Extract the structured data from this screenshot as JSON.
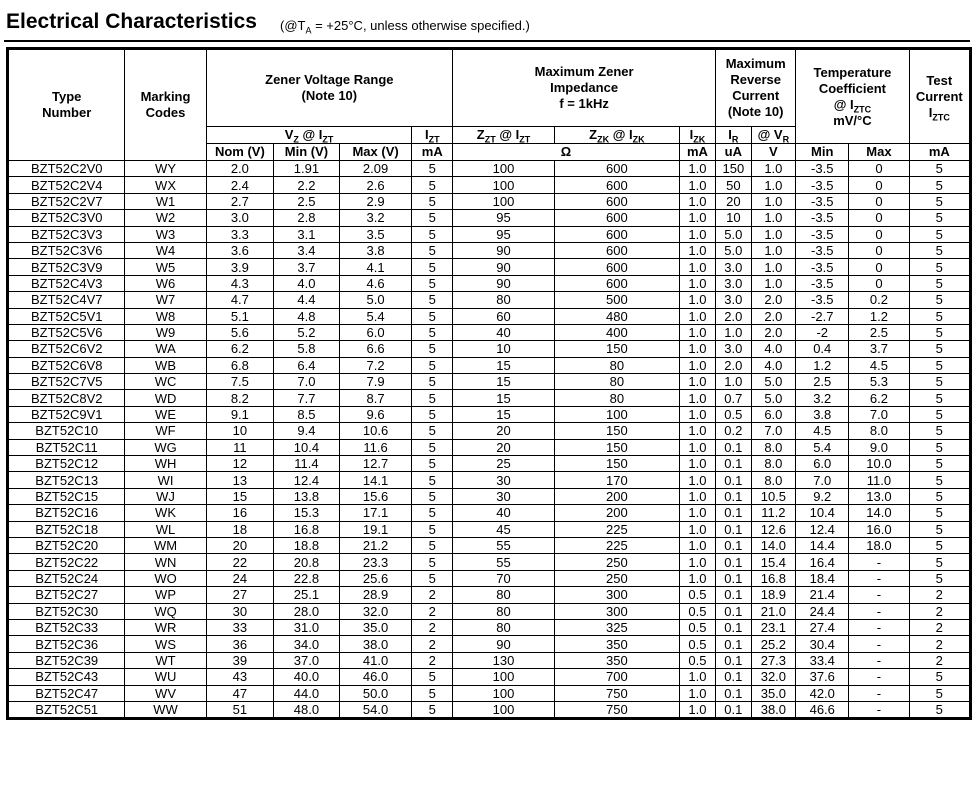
{
  "title": "Electrical Characteristics",
  "title_note": {
    "pre": "(@T",
    "sub": "A",
    "post": " = +25°C, unless otherwise specified.)"
  },
  "headers": {
    "type_number": [
      "Type",
      "Number"
    ],
    "marking_codes": [
      "Marking",
      "Codes"
    ],
    "zener_voltage_range": [
      "Zener Voltage Range",
      "(Note 10)"
    ],
    "max_zener_impedance": [
      "Maximum Zener",
      "Impedance",
      "f = 1kHz"
    ],
    "max_reverse_current": [
      "Maximum",
      "Reverse",
      "Current",
      "(Note 10)"
    ],
    "temp_coefficient": [
      "Temperature",
      "Coefficient",
      "@ I",
      "ZTC",
      "mV/°C"
    ],
    "test_current": [
      "Test",
      "Current",
      "I",
      "ZTC"
    ],
    "vz_at_izt": {
      "a": "V",
      "a_sub": "Z",
      "b": " @ I",
      "b_sub": "ZT"
    },
    "izt": {
      "a": "I",
      "a_sub": "ZT"
    },
    "zzt_at_izt": {
      "a": "Z",
      "a_sub": "ZT",
      "b": " @ I",
      "b_sub": "ZT"
    },
    "zzk_at_izk": {
      "a": "Z",
      "a_sub": "ZK",
      "b": " @ I",
      "b_sub": "ZK"
    },
    "izk": {
      "a": "I",
      "a_sub": "ZK"
    },
    "ir": {
      "a": "I",
      "a_sub": "R"
    },
    "at_vr": {
      "a": "@ V",
      "a_sub": "R"
    },
    "units": [
      "Nom (V)",
      "Min (V)",
      "Max (V)",
      "mA",
      "Ω",
      "mA",
      "uA",
      "V",
      "Min",
      "Max",
      "mA"
    ]
  },
  "rows": [
    [
      "BZT52C2V0",
      "WY",
      "2.0",
      "1.91",
      "2.09",
      "5",
      "100",
      "600",
      "1.0",
      "150",
      "1.0",
      "-3.5",
      "0",
      "5"
    ],
    [
      "BZT52C2V4",
      "WX",
      "2.4",
      "2.2",
      "2.6",
      "5",
      "100",
      "600",
      "1.0",
      "50",
      "1.0",
      "-3.5",
      "0",
      "5"
    ],
    [
      "BZT52C2V7",
      "W1",
      "2.7",
      "2.5",
      "2.9",
      "5",
      "100",
      "600",
      "1.0",
      "20",
      "1.0",
      "-3.5",
      "0",
      "5"
    ],
    [
      "BZT52C3V0",
      "W2",
      "3.0",
      "2.8",
      "3.2",
      "5",
      "95",
      "600",
      "1.0",
      "10",
      "1.0",
      "-3.5",
      "0",
      "5"
    ],
    [
      "BZT52C3V3",
      "W3",
      "3.3",
      "3.1",
      "3.5",
      "5",
      "95",
      "600",
      "1.0",
      "5.0",
      "1.0",
      "-3.5",
      "0",
      "5"
    ],
    [
      "BZT52C3V6",
      "W4",
      "3.6",
      "3.4",
      "3.8",
      "5",
      "90",
      "600",
      "1.0",
      "5.0",
      "1.0",
      "-3.5",
      "0",
      "5"
    ],
    [
      "BZT52C3V9",
      "W5",
      "3.9",
      "3.7",
      "4.1",
      "5",
      "90",
      "600",
      "1.0",
      "3.0",
      "1.0",
      "-3.5",
      "0",
      "5"
    ],
    [
      "BZT52C4V3",
      "W6",
      "4.3",
      "4.0",
      "4.6",
      "5",
      "90",
      "600",
      "1.0",
      "3.0",
      "1.0",
      "-3.5",
      "0",
      "5"
    ],
    [
      "BZT52C4V7",
      "W7",
      "4.7",
      "4.4",
      "5.0",
      "5",
      "80",
      "500",
      "1.0",
      "3.0",
      "2.0",
      "-3.5",
      "0.2",
      "5"
    ],
    [
      "BZT52C5V1",
      "W8",
      "5.1",
      "4.8",
      "5.4",
      "5",
      "60",
      "480",
      "1.0",
      "2.0",
      "2.0",
      "-2.7",
      "1.2",
      "5"
    ],
    [
      "BZT52C5V6",
      "W9",
      "5.6",
      "5.2",
      "6.0",
      "5",
      "40",
      "400",
      "1.0",
      "1.0",
      "2.0",
      "-2",
      "2.5",
      "5"
    ],
    [
      "BZT52C6V2",
      "WA",
      "6.2",
      "5.8",
      "6.6",
      "5",
      "10",
      "150",
      "1.0",
      "3.0",
      "4.0",
      "0.4",
      "3.7",
      "5"
    ],
    [
      "BZT52C6V8",
      "WB",
      "6.8",
      "6.4",
      "7.2",
      "5",
      "15",
      "80",
      "1.0",
      "2.0",
      "4.0",
      "1.2",
      "4.5",
      "5"
    ],
    [
      "BZT52C7V5",
      "WC",
      "7.5",
      "7.0",
      "7.9",
      "5",
      "15",
      "80",
      "1.0",
      "1.0",
      "5.0",
      "2.5",
      "5.3",
      "5"
    ],
    [
      "BZT52C8V2",
      "WD",
      "8.2",
      "7.7",
      "8.7",
      "5",
      "15",
      "80",
      "1.0",
      "0.7",
      "5.0",
      "3.2",
      "6.2",
      "5"
    ],
    [
      "BZT52C9V1",
      "WE",
      "9.1",
      "8.5",
      "9.6",
      "5",
      "15",
      "100",
      "1.0",
      "0.5",
      "6.0",
      "3.8",
      "7.0",
      "5"
    ],
    [
      "BZT52C10",
      "WF",
      "10",
      "9.4",
      "10.6",
      "5",
      "20",
      "150",
      "1.0",
      "0.2",
      "7.0",
      "4.5",
      "8.0",
      "5"
    ],
    [
      "BZT52C11",
      "WG",
      "11",
      "10.4",
      "11.6",
      "5",
      "20",
      "150",
      "1.0",
      "0.1",
      "8.0",
      "5.4",
      "9.0",
      "5"
    ],
    [
      "BZT52C12",
      "WH",
      "12",
      "11.4",
      "12.7",
      "5",
      "25",
      "150",
      "1.0",
      "0.1",
      "8.0",
      "6.0",
      "10.0",
      "5"
    ],
    [
      "BZT52C13",
      "WI",
      "13",
      "12.4",
      "14.1",
      "5",
      "30",
      "170",
      "1.0",
      "0.1",
      "8.0",
      "7.0",
      "11.0",
      "5"
    ],
    [
      "BZT52C15",
      "WJ",
      "15",
      "13.8",
      "15.6",
      "5",
      "30",
      "200",
      "1.0",
      "0.1",
      "10.5",
      "9.2",
      "13.0",
      "5"
    ],
    [
      "BZT52C16",
      "WK",
      "16",
      "15.3",
      "17.1",
      "5",
      "40",
      "200",
      "1.0",
      "0.1",
      "11.2",
      "10.4",
      "14.0",
      "5"
    ],
    [
      "BZT52C18",
      "WL",
      "18",
      "16.8",
      "19.1",
      "5",
      "45",
      "225",
      "1.0",
      "0.1",
      "12.6",
      "12.4",
      "16.0",
      "5"
    ],
    [
      "BZT52C20",
      "WM",
      "20",
      "18.8",
      "21.2",
      "5",
      "55",
      "225",
      "1.0",
      "0.1",
      "14.0",
      "14.4",
      "18.0",
      "5"
    ],
    [
      "BZT52C22",
      "WN",
      "22",
      "20.8",
      "23.3",
      "5",
      "55",
      "250",
      "1.0",
      "0.1",
      "15.4",
      "16.4",
      "-",
      "5"
    ],
    [
      "BZT52C24",
      "WO",
      "24",
      "22.8",
      "25.6",
      "5",
      "70",
      "250",
      "1.0",
      "0.1",
      "16.8",
      "18.4",
      "-",
      "5"
    ],
    [
      "BZT52C27",
      "WP",
      "27",
      "25.1",
      "28.9",
      "2",
      "80",
      "300",
      "0.5",
      "0.1",
      "18.9",
      "21.4",
      "-",
      "2"
    ],
    [
      "BZT52C30",
      "WQ",
      "30",
      "28.0",
      "32.0",
      "2",
      "80",
      "300",
      "0.5",
      "0.1",
      "21.0",
      "24.4",
      "-",
      "2"
    ],
    [
      "BZT52C33",
      "WR",
      "33",
      "31.0",
      "35.0",
      "2",
      "80",
      "325",
      "0.5",
      "0.1",
      "23.1",
      "27.4",
      "-",
      "2"
    ],
    [
      "BZT52C36",
      "WS",
      "36",
      "34.0",
      "38.0",
      "2",
      "90",
      "350",
      "0.5",
      "0.1",
      "25.2",
      "30.4",
      "-",
      "2"
    ],
    [
      "BZT52C39",
      "WT",
      "39",
      "37.0",
      "41.0",
      "2",
      "130",
      "350",
      "0.5",
      "0.1",
      "27.3",
      "33.4",
      "-",
      "2"
    ],
    [
      "BZT52C43",
      "WU",
      "43",
      "40.0",
      "46.0",
      "5",
      "100",
      "700",
      "1.0",
      "0.1",
      "32.0",
      "37.6",
      "-",
      "5"
    ],
    [
      "BZT52C47",
      "WV",
      "47",
      "44.0",
      "50.0",
      "5",
      "100",
      "750",
      "1.0",
      "0.1",
      "35.0",
      "42.0",
      "-",
      "5"
    ],
    [
      "BZT52C51",
      "WW",
      "51",
      "48.0",
      "54.0",
      "5",
      "100",
      "750",
      "1.0",
      "0.1",
      "38.0",
      "46.6",
      "-",
      "5"
    ]
  ]
}
